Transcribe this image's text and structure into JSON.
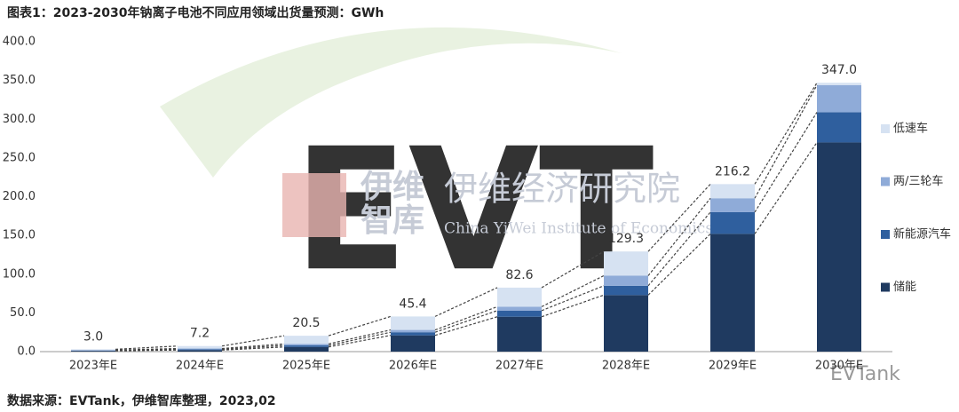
{
  "chart_data": {
    "type": "stacked_bar",
    "title": "图表1：2023-2030年钠离子电池不同应用领域出货量预测：GWh",
    "categories": [
      "2023年E",
      "2024年E",
      "2025年E",
      "2026年E",
      "2027年E",
      "2028年E",
      "2029年E",
      "2030年E"
    ],
    "series": [
      {
        "name": "储能",
        "color": "#1f3a60",
        "values": [
          1,
          2,
          6,
          21,
          45,
          73,
          152,
          270
        ]
      },
      {
        "name": "新能源汽车",
        "color": "#2f5f9e",
        "values": [
          0.5,
          1,
          2,
          4,
          8,
          12,
          28,
          39
        ]
      },
      {
        "name": "两/三轮车",
        "color": "#8fabd8",
        "values": [
          0.5,
          1,
          2,
          3,
          5,
          13,
          18,
          35
        ]
      },
      {
        "name": "低速车",
        "color": "#d6e2f2",
        "values": [
          1,
          3.2,
          10.5,
          17.4,
          24.6,
          31.3,
          18.2,
          3
        ]
      }
    ],
    "totals": [
      3,
      7.2,
      20.5,
      45.4,
      82.6,
      129.3,
      216.2,
      347
    ],
    "total_labels": [
      "3.0",
      "7.2",
      "20.5",
      "45.4",
      "82.6",
      "129.3",
      "216.2",
      "347.0"
    ],
    "ylim": [
      0,
      400
    ],
    "yticks": [
      {
        "value": 0,
        "label": "0.0"
      },
      {
        "value": 50,
        "label": "50.0"
      },
      {
        "value": 100,
        "label": "100.0"
      },
      {
        "value": 150,
        "label": "150.0"
      },
      {
        "value": 200,
        "label": "200.0"
      },
      {
        "value": 250,
        "label": "250.0"
      },
      {
        "value": 300,
        "label": "300.0"
      },
      {
        "value": 350,
        "label": "350.0"
      },
      {
        "value": 400,
        "label": "400.0"
      }
    ],
    "legend": "right",
    "source": "数据来源：EVTank，伊维智库整理，2023,02",
    "watermarks": [
      "伊维",
      "智库",
      "伊维经济研究院",
      "China YiWei Institute of Economics",
      "EVTank"
    ]
  }
}
